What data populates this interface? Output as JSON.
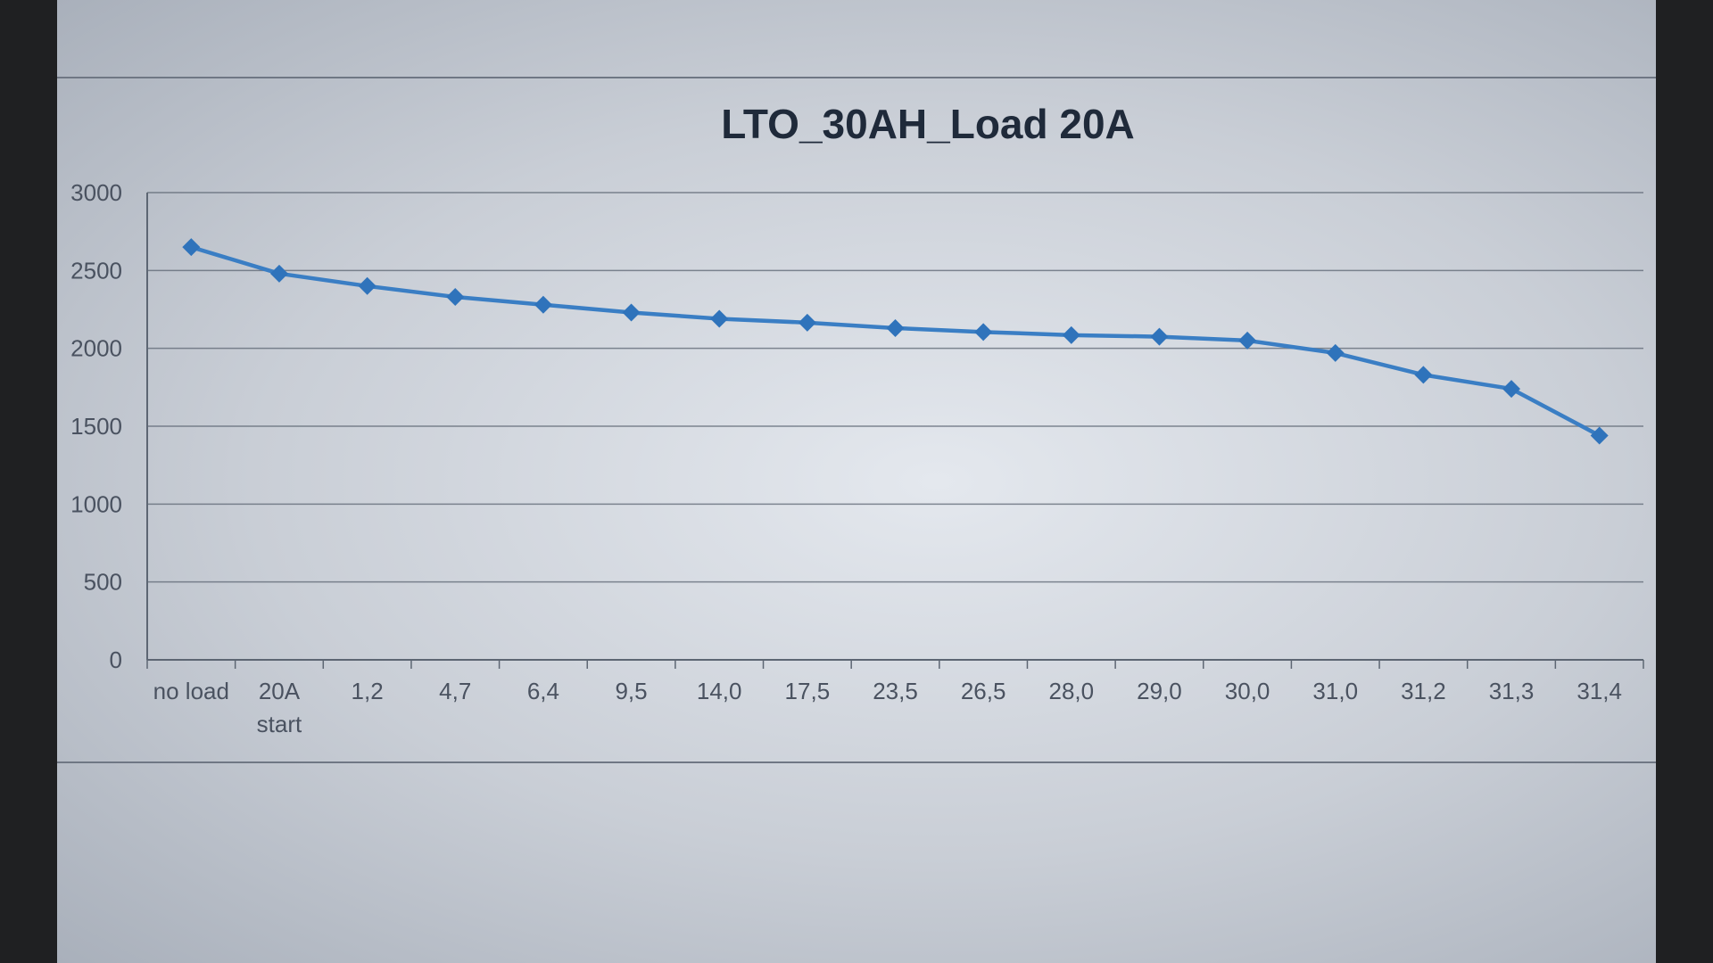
{
  "chart_data": {
    "type": "line",
    "title": "LTO_30AH_Load 20A",
    "xlabel": "",
    "ylabel": "",
    "categories": [
      [
        "no load"
      ],
      [
        "20A",
        "start"
      ],
      [
        "1,2"
      ],
      [
        "4,7"
      ],
      [
        "6,4"
      ],
      [
        "9,5"
      ],
      [
        "14,0"
      ],
      [
        "17,5"
      ],
      [
        "23,5"
      ],
      [
        "26,5"
      ],
      [
        "28,0"
      ],
      [
        "29,0"
      ],
      [
        "30,0"
      ],
      [
        "31,0"
      ],
      [
        "31,2"
      ],
      [
        "31,3"
      ],
      [
        "31,4"
      ]
    ],
    "series": [
      {
        "values": [
          2650,
          2480,
          2400,
          2330,
          2280,
          2230,
          2190,
          2165,
          2130,
          2105,
          2085,
          2075,
          2050,
          1970,
          1830,
          1740,
          1440
        ]
      }
    ],
    "yticks": [
      0,
      500,
      1000,
      1500,
      2000,
      2500,
      3000
    ],
    "ylim": [
      0,
      3000
    ],
    "grid": true,
    "legend": "none",
    "colors": {
      "line": "#3a7ec4",
      "marker": "#2f73bb",
      "grid": "#5d6673"
    }
  }
}
